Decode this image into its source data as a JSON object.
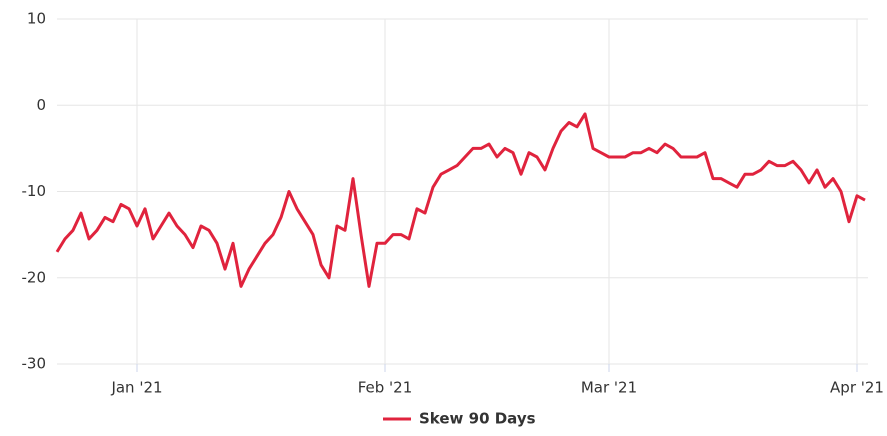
{
  "chart_data": {
    "type": "line",
    "categories": [
      null,
      null,
      null,
      null,
      null,
      null,
      null,
      null,
      null,
      null,
      "Jan '21",
      null,
      null,
      null,
      null,
      null,
      null,
      null,
      null,
      null,
      null,
      null,
      null,
      null,
      null,
      null,
      null,
      null,
      null,
      null,
      null,
      null,
      null,
      null,
      null,
      null,
      null,
      null,
      null,
      null,
      null,
      "Feb '21",
      null,
      null,
      null,
      null,
      null,
      null,
      null,
      null,
      null,
      null,
      null,
      null,
      null,
      null,
      null,
      null,
      null,
      null,
      null,
      null,
      null,
      null,
      null,
      null,
      null,
      null,
      null,
      "Mar '21",
      null,
      null,
      null,
      null,
      null,
      null,
      null,
      null,
      null,
      null,
      null,
      null,
      null,
      null,
      null,
      null,
      null,
      null,
      null,
      null,
      null,
      null,
      null,
      null,
      null,
      null,
      null,
      null,
      null,
      null,
      "Apr '21",
      null
    ],
    "series": [
      {
        "name": "Skew 90 Days",
        "color": "#e0233d",
        "values": [
          -17,
          -15.5,
          -14.5,
          -12.5,
          -15.5,
          -14.5,
          -13,
          -13.5,
          -11.5,
          -12,
          -14,
          -12,
          -15.5,
          -14,
          -12.5,
          -14,
          -15,
          -16.5,
          -14,
          -14.5,
          -16,
          -19,
          -16,
          -21,
          -19,
          -17.5,
          -16,
          -15,
          -13,
          -10,
          -12,
          -13.5,
          -15,
          -18.5,
          -20,
          -14,
          -14.5,
          -8.5,
          -15,
          -21,
          -16,
          -16,
          -15,
          -15,
          -15.5,
          -12,
          -12.5,
          -9.5,
          -8,
          -7.5,
          -7,
          -6,
          -5,
          -5,
          -4.5,
          -6,
          -5,
          -5.5,
          -8,
          -5.5,
          -6,
          -7.5,
          -5,
          -3,
          -2,
          -2.5,
          -1,
          -5,
          -5.5,
          -6,
          -6,
          -6,
          -5.5,
          -5.5,
          -5,
          -5.5,
          -4.5,
          -5,
          -6,
          -6,
          -6,
          -5.5,
          -8.5,
          -8.5,
          -9,
          -9.5,
          -8,
          -8,
          -7.5,
          -6.5,
          -7,
          -7,
          -6.5,
          -7.5,
          -9,
          -7.5,
          -9.5,
          -8.5,
          -10,
          -13.5,
          -10.5,
          -11
        ]
      }
    ],
    "ylim": [
      -30,
      10
    ],
    "yticks": [
      -30,
      -20,
      -10,
      0,
      10
    ],
    "grid": true
  }
}
